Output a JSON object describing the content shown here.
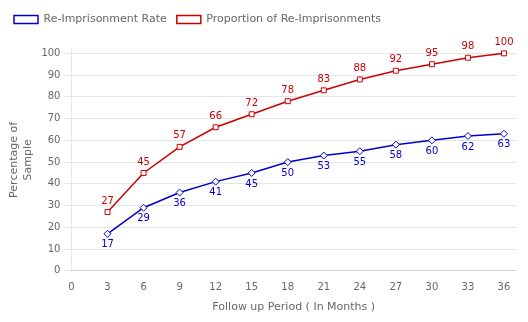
{
  "chart_data": {
    "type": "line",
    "x": [
      3,
      6,
      9,
      12,
      15,
      18,
      21,
      24,
      27,
      30,
      33,
      36
    ],
    "series": [
      {
        "name": "Re-Imprisonment Rate",
        "color": "#0000cc",
        "marker": "diamond",
        "line_style": "solid",
        "values": [
          17,
          29,
          36,
          41,
          45,
          50,
          53,
          55,
          58,
          60,
          62,
          63
        ]
      },
      {
        "name": "Proportion of Re-Imprisonments",
        "color": "#cc0000",
        "marker": "square",
        "line_style": "solid",
        "values": [
          27,
          45,
          57,
          66,
          72,
          78,
          83,
          88,
          92,
          95,
          98,
          100
        ]
      }
    ],
    "xlabel": "Follow up Period ( In Months )",
    "ylabel": "Percentage of\nSample",
    "xlim": [
      0,
      37
    ],
    "ylim": [
      0,
      102
    ],
    "xticks": [
      0,
      3,
      6,
      9,
      12,
      15,
      18,
      21,
      24,
      27,
      30,
      33,
      36
    ],
    "yticks": [
      0,
      10,
      20,
      30,
      40,
      50,
      60,
      70,
      80,
      90,
      100
    ],
    "grid": "y",
    "legend": "upper left",
    "data_labels": true
  }
}
